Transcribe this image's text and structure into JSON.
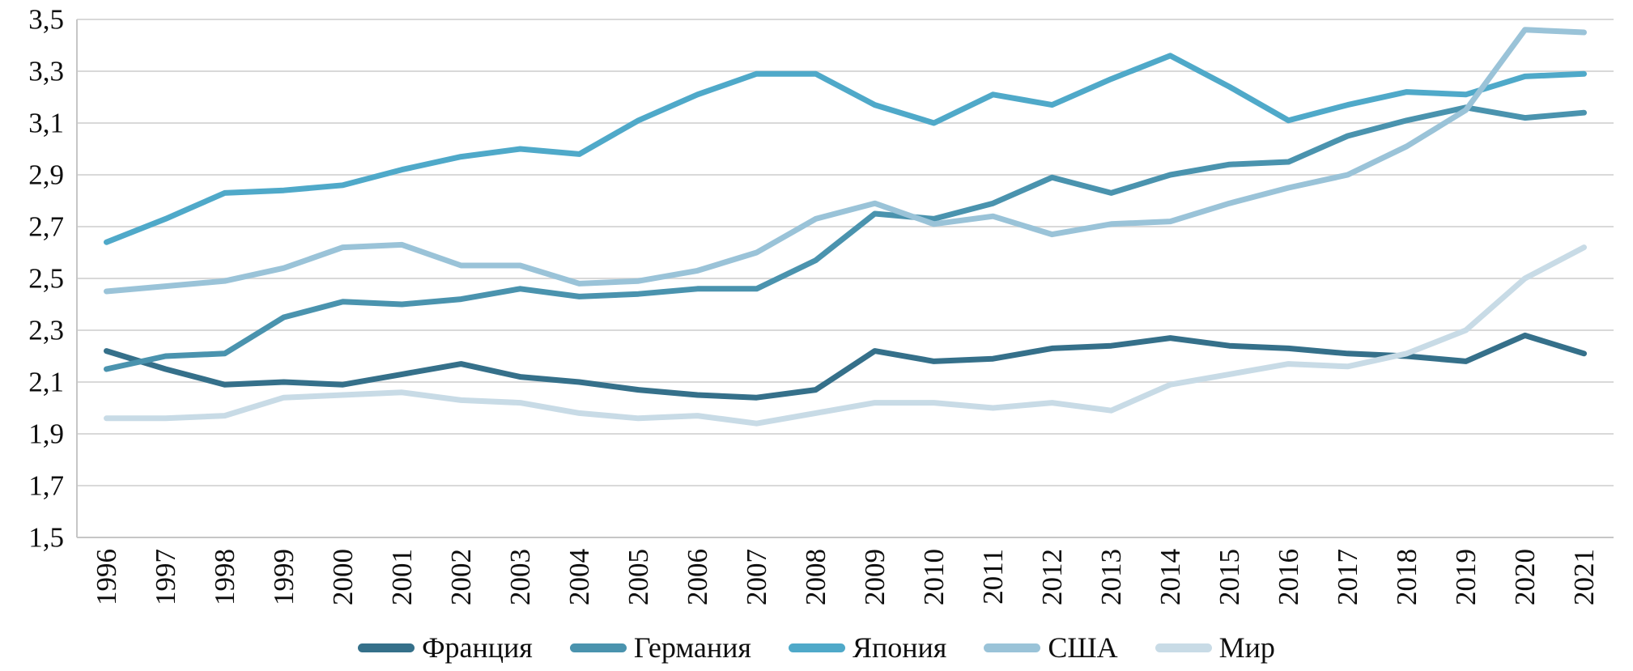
{
  "chart_data": {
    "type": "line",
    "title": "",
    "xlabel": "",
    "ylabel": "",
    "categories": [
      "1996",
      "1997",
      "1998",
      "1999",
      "2000",
      "2001",
      "2002",
      "2003",
      "2004",
      "2005",
      "2006",
      "2007",
      "2008",
      "2009",
      "2010",
      "2011",
      "2012",
      "2013",
      "2014",
      "2015",
      "2016",
      "2017",
      "2018",
      "2019",
      "2020",
      "2021"
    ],
    "series": [
      {
        "key": "france",
        "name": "Франция",
        "color": "#35708A",
        "values": [
          2.22,
          2.15,
          2.09,
          2.1,
          2.09,
          2.13,
          2.17,
          2.12,
          2.1,
          2.07,
          2.05,
          2.04,
          2.07,
          2.22,
          2.18,
          2.19,
          2.23,
          2.24,
          2.27,
          2.24,
          2.23,
          2.21,
          2.2,
          2.18,
          2.28,
          2.21
        ]
      },
      {
        "key": "germany",
        "name": "Германия",
        "color": "#4A93AE",
        "values": [
          2.15,
          2.2,
          2.21,
          2.35,
          2.41,
          2.4,
          2.42,
          2.46,
          2.43,
          2.44,
          2.46,
          2.46,
          2.57,
          2.75,
          2.73,
          2.79,
          2.89,
          2.83,
          2.9,
          2.94,
          2.95,
          3.05,
          3.11,
          3.16,
          3.12,
          3.14
        ]
      },
      {
        "key": "japan",
        "name": "Япония",
        "color": "#4FA9C9",
        "values": [
          2.64,
          2.73,
          2.83,
          2.84,
          2.86,
          2.92,
          2.97,
          3.0,
          2.98,
          3.11,
          3.21,
          3.29,
          3.29,
          3.17,
          3.1,
          3.21,
          3.17,
          3.27,
          3.36,
          3.24,
          3.11,
          3.17,
          3.22,
          3.21,
          3.28,
          3.29
        ]
      },
      {
        "key": "usa",
        "name": "США",
        "color": "#9AC3D8",
        "values": [
          2.45,
          2.47,
          2.49,
          2.54,
          2.62,
          2.63,
          2.55,
          2.55,
          2.48,
          2.49,
          2.53,
          2.6,
          2.73,
          2.79,
          2.71,
          2.74,
          2.67,
          2.71,
          2.72,
          2.79,
          2.85,
          2.9,
          3.01,
          3.15,
          3.46,
          3.45
        ]
      },
      {
        "key": "world",
        "name": "Мир",
        "color": "#C8DBE6",
        "values": [
          1.96,
          1.96,
          1.97,
          2.04,
          2.05,
          2.06,
          2.03,
          2.02,
          1.98,
          1.96,
          1.97,
          1.94,
          1.98,
          2.02,
          2.02,
          2.0,
          2.02,
          1.99,
          2.09,
          2.13,
          2.17,
          2.16,
          2.21,
          2.3,
          2.5,
          2.62
        ]
      }
    ],
    "y_axis": {
      "min": 1.5,
      "max": 3.5,
      "step": 0.2,
      "tick_labels": [
        "1,5",
        "1,7",
        "1,9",
        "2,1",
        "2,3",
        "2,5",
        "2,7",
        "2,9",
        "3,1",
        "3,3",
        "3,5"
      ]
    },
    "x_axis": {
      "label_rotation_deg": -90
    },
    "grid": true,
    "legend_position": "bottom"
  },
  "style": {
    "gridline_color": "#D9D9D9",
    "axis_line_color": "#C6C6C6",
    "text_color": "#0f0f0f",
    "background": "#FFFFFF",
    "line_width": 7
  }
}
